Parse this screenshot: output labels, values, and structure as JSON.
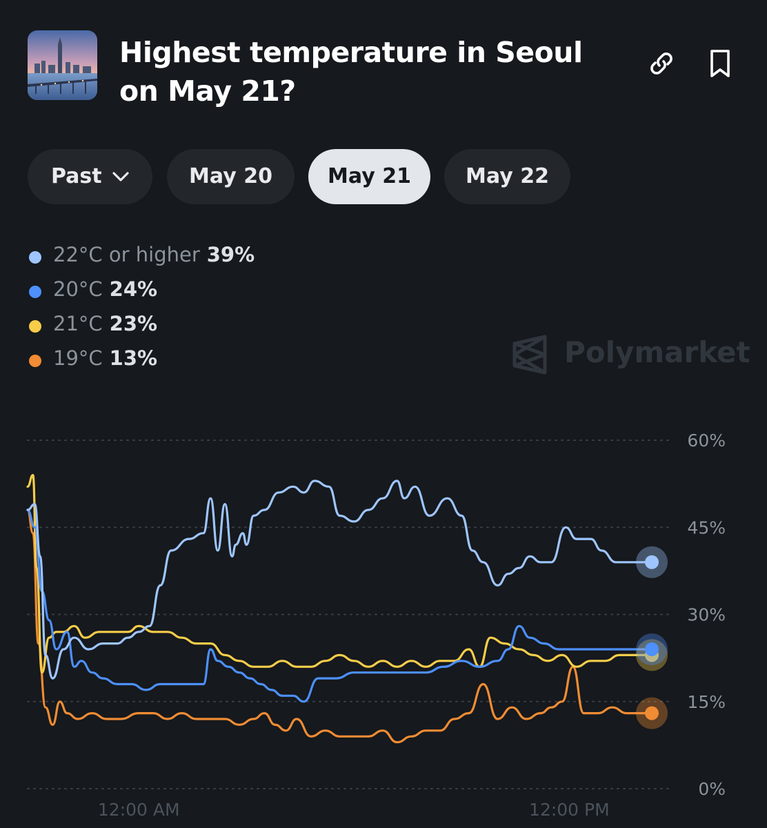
{
  "market": {
    "title": "Highest temperature in Seoul on May 21?",
    "thumbnail_icon": "seoul-skyline-image"
  },
  "header_icons": [
    "link-icon",
    "bookmark-icon"
  ],
  "tabs": {
    "past_label": "Past",
    "dates": [
      "May 20",
      "May 21",
      "May 22"
    ],
    "active": "May 21"
  },
  "legend": [
    {
      "label": "22°C or higher",
      "pct": "39%",
      "color": "#9ec5ff"
    },
    {
      "label": "20°C",
      "pct": "24%",
      "color": "#4d90fe"
    },
    {
      "label": "21°C",
      "pct": "23%",
      "color": "#f7cd4a"
    },
    {
      "label": "19°C",
      "pct": "13%",
      "color": "#f08c34"
    }
  ],
  "watermark": "Polymarket",
  "chart_data": {
    "type": "line",
    "y_ticks": [
      "60%",
      "45%",
      "30%",
      "15%",
      "0%"
    ],
    "ylim": [
      0,
      60
    ],
    "x_ticks": [
      "12:00 AM",
      "12:00 PM"
    ],
    "x_tick_hours": [
      0,
      12
    ],
    "xlim": [
      -3.1,
      14.3
    ],
    "grid": true,
    "series": [
      {
        "name": "22°C or higher",
        "color": "#9ec5ff",
        "x": [
          -3.1,
          -2.9,
          -2.75,
          -2.6,
          -2.4,
          -2.1,
          -1.8,
          -1.4,
          -1.0,
          -0.6,
          -0.3,
          0.0,
          0.3,
          0.6,
          0.9,
          1.4,
          1.8,
          2.0,
          2.2,
          2.4,
          2.6,
          2.7,
          2.9,
          3.0,
          3.2,
          3.5,
          3.9,
          4.3,
          4.6,
          4.9,
          5.3,
          5.6,
          6.0,
          6.4,
          6.8,
          7.2,
          7.4,
          7.7,
          8.1,
          8.6,
          9.0,
          9.3,
          9.6,
          10.0,
          10.3,
          10.6,
          10.9,
          11.2,
          11.5,
          11.9,
          12.2,
          12.6,
          12.9,
          13.3,
          13.7,
          14.3
        ],
        "y": [
          48,
          49,
          40,
          23,
          19,
          24,
          26,
          24,
          25,
          25,
          26,
          27,
          28,
          35,
          41,
          43,
          44,
          50,
          41,
          49,
          40,
          42,
          44,
          42,
          47,
          48,
          51,
          52,
          51,
          53,
          52,
          47,
          46,
          48,
          50,
          53,
          50,
          52,
          47,
          50,
          47,
          41,
          39,
          35,
          37,
          38,
          40,
          39,
          39,
          45,
          43,
          43,
          41,
          39,
          39,
          39
        ]
      },
      {
        "name": "20°C",
        "color": "#4d90fe",
        "x": [
          -3.1,
          -2.9,
          -2.7,
          -2.5,
          -2.3,
          -2.0,
          -1.8,
          -1.6,
          -1.3,
          -1.0,
          -0.6,
          -0.2,
          0.2,
          0.6,
          1.0,
          1.4,
          1.8,
          2.0,
          2.2,
          2.5,
          2.8,
          3.1,
          3.4,
          3.7,
          4.0,
          4.3,
          4.6,
          5.0,
          5.5,
          6.0,
          6.5,
          7.0,
          7.5,
          8.0,
          8.5,
          9.0,
          9.5,
          10.0,
          10.3,
          10.6,
          10.9,
          11.3,
          11.7,
          12.0,
          12.4,
          12.9,
          13.3,
          13.7,
          14.3
        ],
        "y": [
          48,
          45,
          34,
          29,
          24,
          27,
          21,
          22,
          20,
          19,
          18,
          18,
          17,
          18,
          18,
          18,
          18,
          24,
          22,
          21,
          20,
          19,
          18,
          17,
          16,
          16,
          15,
          19,
          19,
          20,
          20,
          20,
          20,
          20,
          21,
          22,
          21,
          22,
          24,
          28,
          26,
          25,
          24,
          24,
          24,
          24,
          24,
          24,
          24
        ]
      },
      {
        "name": "21°C",
        "color": "#f7cd4a",
        "x": [
          -3.1,
          -2.95,
          -2.85,
          -2.7,
          -2.5,
          -2.3,
          -2.1,
          -1.8,
          -1.5,
          -1.1,
          -0.7,
          -0.3,
          0.0,
          0.4,
          0.8,
          1.2,
          1.6,
          2.0,
          2.4,
          2.8,
          3.2,
          3.6,
          4.0,
          4.4,
          4.8,
          5.2,
          5.6,
          6.0,
          6.4,
          6.8,
          7.2,
          7.6,
          8.0,
          8.4,
          8.8,
          9.2,
          9.5,
          9.8,
          10.2,
          10.6,
          11.0,
          11.4,
          11.8,
          12.2,
          12.6,
          13.0,
          13.4,
          13.8,
          14.3
        ],
        "y": [
          52,
          54,
          38,
          20,
          26,
          27,
          27,
          28,
          26,
          27,
          27,
          27,
          28,
          27,
          27,
          26,
          25,
          25,
          23,
          22,
          21,
          21,
          22,
          21,
          21,
          22,
          23,
          22,
          21,
          22,
          21,
          22,
          21,
          22,
          22,
          24,
          21,
          26,
          25,
          24,
          23,
          22,
          23,
          21,
          22,
          22,
          23,
          23,
          23
        ]
      },
      {
        "name": "19°C",
        "color": "#f08c34",
        "x": [
          -3.1,
          -2.95,
          -2.8,
          -2.6,
          -2.4,
          -2.2,
          -2.0,
          -1.7,
          -1.3,
          -0.9,
          -0.5,
          0.0,
          0.4,
          0.8,
          1.2,
          1.6,
          2.0,
          2.4,
          2.8,
          3.2,
          3.5,
          3.8,
          4.1,
          4.4,
          4.8,
          5.2,
          5.6,
          6.0,
          6.4,
          6.8,
          7.2,
          7.6,
          8.0,
          8.4,
          8.8,
          9.2,
          9.6,
          10.0,
          10.4,
          10.8,
          11.2,
          11.5,
          11.8,
          12.1,
          12.4,
          12.8,
          13.2,
          13.6,
          14.3
        ],
        "y": [
          48,
          44,
          25,
          14,
          11,
          15,
          13,
          12,
          13,
          12,
          12,
          13,
          13,
          12,
          13,
          12,
          12,
          12,
          11,
          12,
          13,
          11,
          10,
          12,
          9,
          10,
          9,
          9,
          9,
          10,
          8,
          9,
          10,
          10,
          12,
          13,
          18,
          12,
          14,
          12,
          13,
          14,
          15,
          21,
          13,
          13,
          14,
          13,
          13
        ]
      }
    ]
  }
}
